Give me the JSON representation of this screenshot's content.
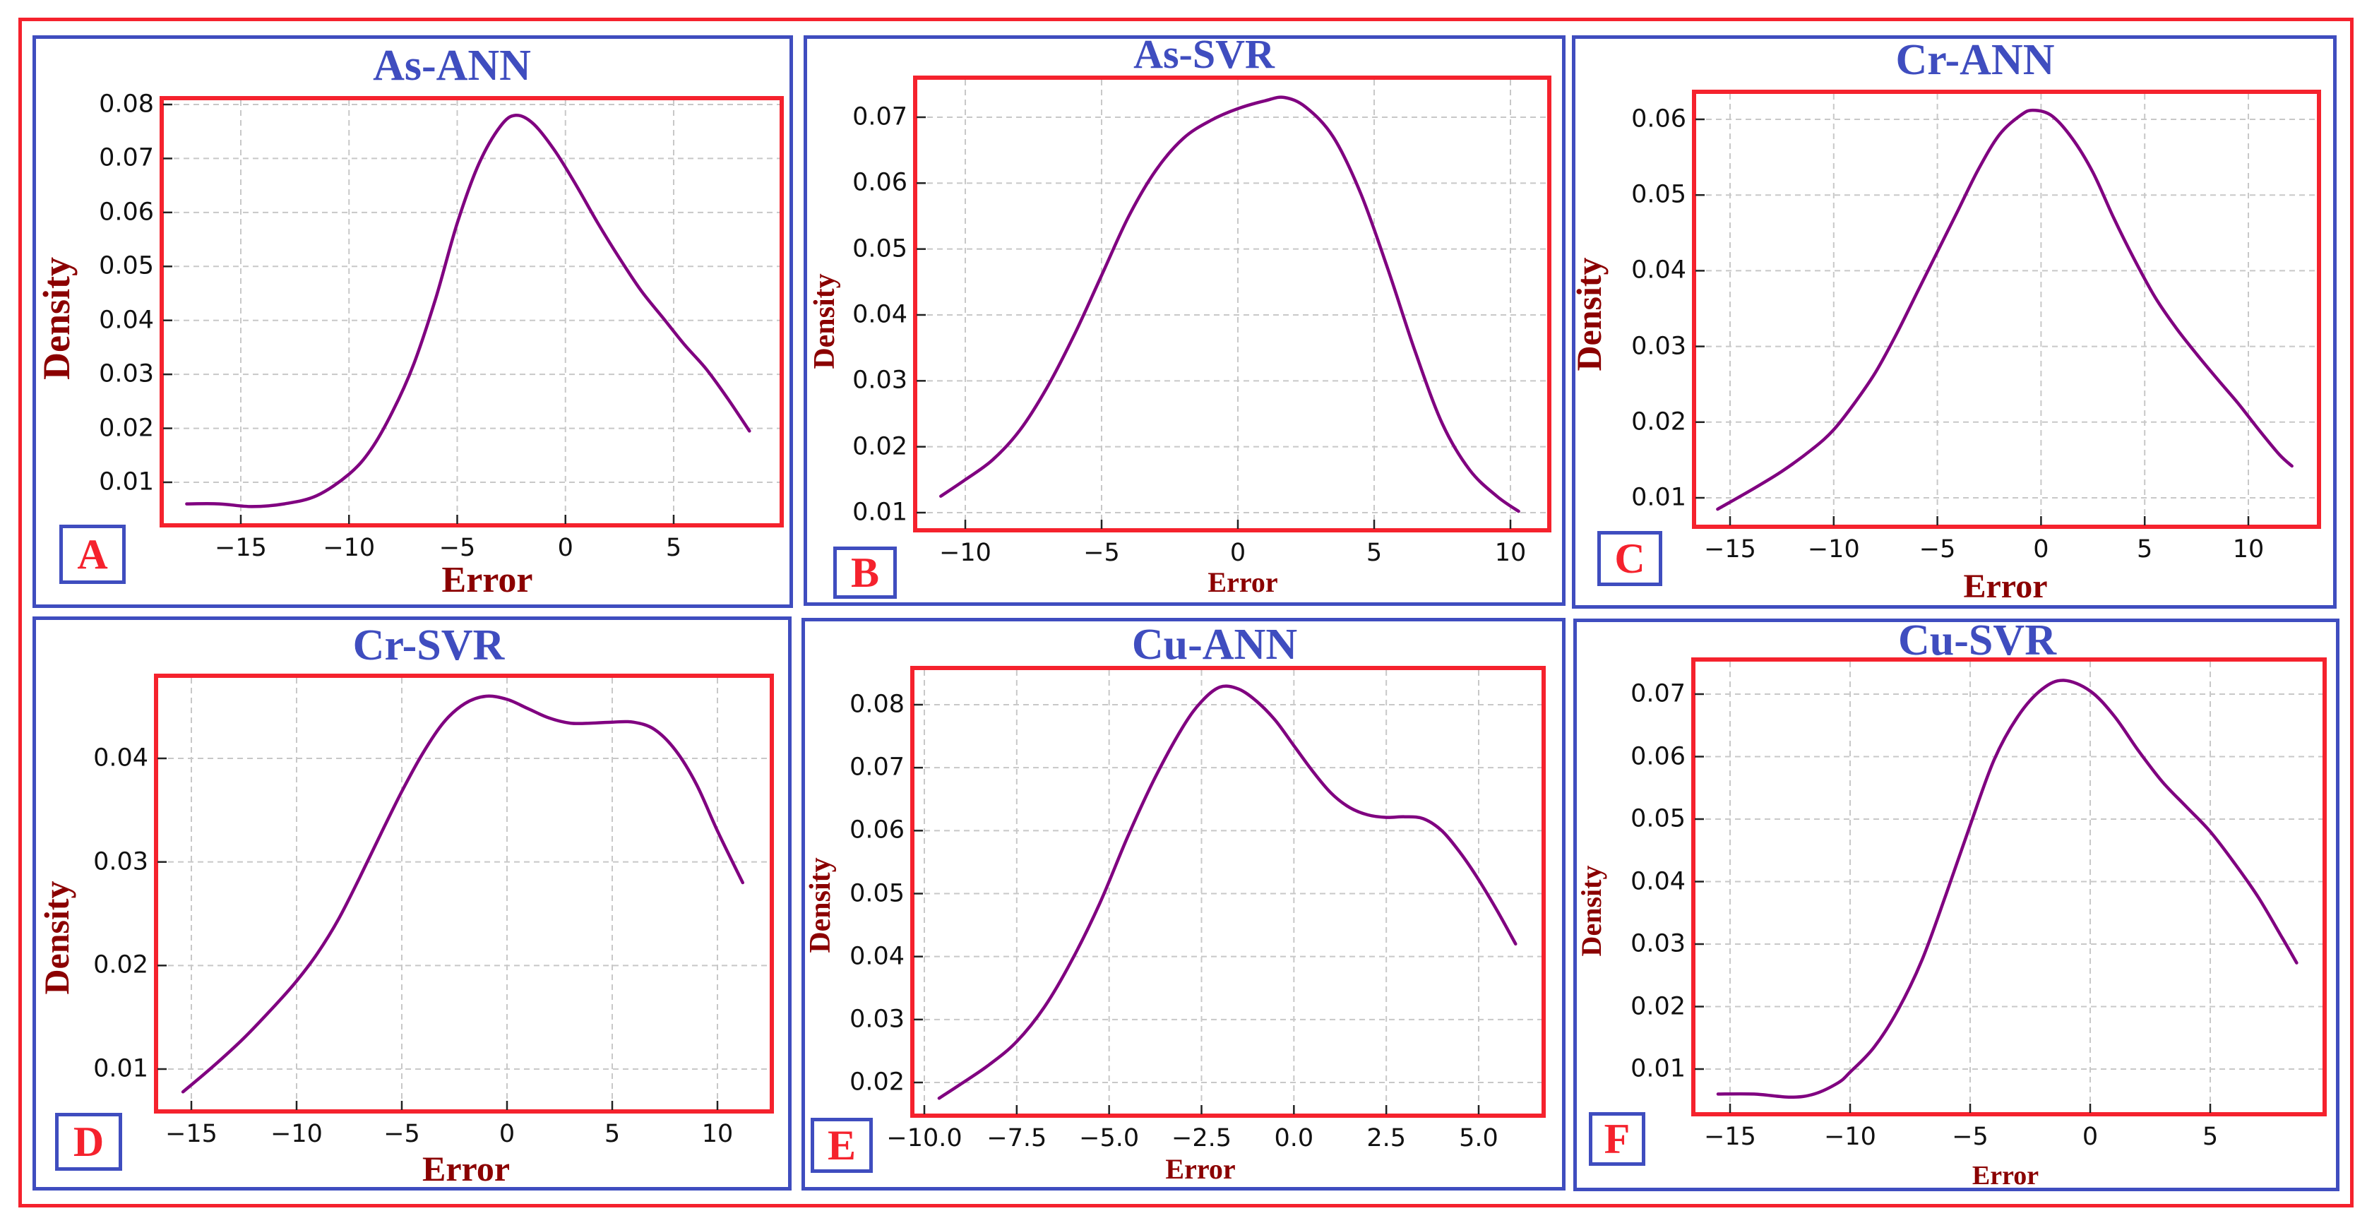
{
  "figure": {
    "panels": [
      {
        "id": "A",
        "title": "As-ANN",
        "letter": "A",
        "xlabel": "Error",
        "ylabel": "Density"
      },
      {
        "id": "B",
        "title": "As-SVR",
        "letter": "B",
        "xlabel": "Error",
        "ylabel": "Density"
      },
      {
        "id": "C",
        "title": "Cr-ANN",
        "letter": "C",
        "xlabel": "Error",
        "ylabel": "Density"
      },
      {
        "id": "D",
        "title": "Cr-SVR",
        "letter": "D",
        "xlabel": "Error",
        "ylabel": "Density"
      },
      {
        "id": "E",
        "title": "Cu-ANN",
        "letter": "E",
        "xlabel": "Error",
        "ylabel": "Density"
      },
      {
        "id": "F",
        "title": "Cu-SVR",
        "letter": "F",
        "xlabel": "Error",
        "ylabel": "Density"
      }
    ],
    "colors": {
      "outer_border": "#f5222d",
      "panel_border": "#3f4dbf",
      "plot_border": "#f5222d",
      "title": "#3f4dbf",
      "axis_label": "#8b0000",
      "curve": "#800080",
      "grid": "#c8c8c8",
      "letter": "#f5222d"
    }
  },
  "chart_data": [
    {
      "type": "line",
      "title": "As-ANN",
      "panel_label": "A",
      "xlabel": "Error",
      "ylabel": "Density",
      "xticks": [
        -15,
        -10,
        -5,
        0,
        5
      ],
      "xtick_labels": [
        "−15",
        "−10",
        "−5",
        "0",
        "5"
      ],
      "yticks": [
        0.01,
        0.02,
        0.03,
        0.04,
        0.05,
        0.06,
        0.07,
        0.08
      ],
      "ytick_labels": [
        "0.01",
        "0.02",
        "0.03",
        "0.04",
        "0.05",
        "0.06",
        "0.07",
        "0.08"
      ],
      "grid": true,
      "x": [
        -17.5,
        -16,
        -14.5,
        -13,
        -11.5,
        -10,
        -9,
        -8,
        -7,
        -6,
        -5,
        -4,
        -3,
        -2.3,
        -1.5,
        -0.5,
        0.5,
        1.5,
        2.5,
        3.5,
        4.5,
        5.5,
        6.5,
        7.5,
        8.5
      ],
      "y": [
        0.006,
        0.006,
        0.0055,
        0.006,
        0.0075,
        0.0115,
        0.016,
        0.023,
        0.032,
        0.044,
        0.058,
        0.069,
        0.076,
        0.078,
        0.0765,
        0.0715,
        0.065,
        0.058,
        0.0515,
        0.0455,
        0.0405,
        0.0355,
        0.031,
        0.0255,
        0.0195
      ]
    },
    {
      "type": "line",
      "title": "As-SVR",
      "panel_label": "B",
      "xlabel": "Error",
      "ylabel": "Density",
      "xticks": [
        -10,
        -5,
        0,
        5,
        10
      ],
      "xtick_labels": [
        "−10",
        "−5",
        "0",
        "5",
        "10"
      ],
      "yticks": [
        0.01,
        0.02,
        0.03,
        0.04,
        0.05,
        0.06,
        0.07
      ],
      "ytick_labels": [
        "0.01",
        "0.02",
        "0.03",
        "0.04",
        "0.05",
        "0.06",
        "0.07"
      ],
      "grid": true,
      "x": [
        -10.9,
        -10,
        -9,
        -8,
        -7,
        -6,
        -5,
        -4,
        -3,
        -2,
        -1,
        0,
        1,
        1.7,
        2.5,
        3.5,
        4.5,
        5.5,
        6.5,
        7.5,
        8.5,
        9.5,
        10.3
      ],
      "y": [
        0.0125,
        0.015,
        0.018,
        0.0225,
        0.029,
        0.037,
        0.046,
        0.055,
        0.062,
        0.0668,
        0.0695,
        0.0713,
        0.0725,
        0.073,
        0.0715,
        0.067,
        0.0585,
        0.047,
        0.0345,
        0.0235,
        0.0165,
        0.0125,
        0.0102
      ]
    },
    {
      "type": "line",
      "title": "Cr-ANN",
      "panel_label": "C",
      "xlabel": "Error",
      "ylabel": "Density",
      "xticks": [
        -15,
        -10,
        -5,
        0,
        5,
        10
      ],
      "xtick_labels": [
        "−15",
        "−10",
        "−5",
        "0",
        "5",
        "10"
      ],
      "yticks": [
        0.01,
        0.02,
        0.03,
        0.04,
        0.05,
        0.06
      ],
      "ytick_labels": [
        "0.01",
        "0.02",
        "0.03",
        "0.04",
        "0.05",
        "0.06"
      ],
      "grid": true,
      "x": [
        -15.6,
        -14,
        -12.5,
        -11,
        -10,
        -9,
        -8,
        -7,
        -6,
        -5,
        -4,
        -3,
        -2,
        -1,
        -0.4,
        0.5,
        1.5,
        2.5,
        3.5,
        4.5,
        5.5,
        6.5,
        7.5,
        8.5,
        9.5,
        10.5,
        11.5,
        12.1
      ],
      "y": [
        0.0085,
        0.011,
        0.0135,
        0.0165,
        0.019,
        0.0225,
        0.0265,
        0.0315,
        0.037,
        0.0425,
        0.048,
        0.0535,
        0.058,
        0.0605,
        0.0612,
        0.0605,
        0.0575,
        0.053,
        0.047,
        0.0415,
        0.0365,
        0.0325,
        0.029,
        0.0257,
        0.0225,
        0.019,
        0.0157,
        0.0142
      ]
    },
    {
      "type": "line",
      "title": "Cr-SVR",
      "panel_label": "D",
      "xlabel": "Error",
      "ylabel": "Density",
      "xticks": [
        -15,
        -10,
        -5,
        0,
        5,
        10
      ],
      "xtick_labels": [
        "−15",
        "−10",
        "−5",
        "0",
        "5",
        "10"
      ],
      "yticks": [
        0.01,
        0.02,
        0.03,
        0.04
      ],
      "ytick_labels": [
        "0.01",
        "0.02",
        "0.03",
        "0.04"
      ],
      "grid": true,
      "x": [
        -15.4,
        -14,
        -12.5,
        -11,
        -10,
        -9,
        -8,
        -7,
        -6,
        -5,
        -4,
        -3,
        -2,
        -1,
        0,
        1,
        2,
        3,
        4,
        5,
        6,
        7,
        8,
        9,
        10,
        11.2
      ],
      "y": [
        0.0078,
        0.0102,
        0.013,
        0.0162,
        0.0185,
        0.0212,
        0.0245,
        0.0285,
        0.0327,
        0.0368,
        0.0405,
        0.0435,
        0.0453,
        0.046,
        0.0457,
        0.0448,
        0.0439,
        0.0434,
        0.0434,
        0.0435,
        0.0435,
        0.0428,
        0.0408,
        0.0375,
        0.033,
        0.028
      ]
    },
    {
      "type": "line",
      "title": "Cu-ANN",
      "panel_label": "E",
      "xlabel": "Error",
      "ylabel": "Density",
      "xticks": [
        -10.0,
        -7.5,
        -5.0,
        -2.5,
        0.0,
        2.5,
        5.0
      ],
      "xtick_labels": [
        "−10.0",
        "−7.5",
        "−5.0",
        "−2.5",
        "0.0",
        "2.5",
        "5.0"
      ],
      "yticks": [
        0.02,
        0.03,
        0.04,
        0.05,
        0.06,
        0.07,
        0.08
      ],
      "ytick_labels": [
        "0.02",
        "0.03",
        "0.04",
        "0.05",
        "0.06",
        "0.07",
        "0.08"
      ],
      "grid": true,
      "x": [
        -9.6,
        -9,
        -8.25,
        -7.5,
        -6.75,
        -6,
        -5.25,
        -4.5,
        -3.75,
        -3,
        -2.5,
        -2,
        -1.5,
        -1,
        -0.5,
        0,
        0.5,
        1,
        1.5,
        2,
        2.5,
        3,
        3.5,
        4,
        4.5,
        5,
        5.5,
        6
      ],
      "y": [
        0.0175,
        0.0198,
        0.0228,
        0.0265,
        0.032,
        0.0395,
        0.0485,
        0.059,
        0.0685,
        0.0765,
        0.0805,
        0.0828,
        0.0825,
        0.0805,
        0.0775,
        0.0735,
        0.0695,
        0.066,
        0.0637,
        0.0625,
        0.0621,
        0.0622,
        0.0619,
        0.06,
        0.0565,
        0.0522,
        0.0473,
        0.042
      ]
    },
    {
      "type": "line",
      "title": "Cu-SVR",
      "panel_label": "F",
      "xlabel": "Error",
      "ylabel": "Density",
      "xticks": [
        -15,
        -10,
        -5,
        0,
        5
      ],
      "xtick_labels": [
        "−15",
        "−10",
        "−5",
        "0",
        "5"
      ],
      "yticks": [
        0.01,
        0.02,
        0.03,
        0.04,
        0.05,
        0.06,
        0.07
      ],
      "ytick_labels": [
        "0.01",
        "0.02",
        "0.03",
        "0.04",
        "0.05",
        "0.06",
        "0.07"
      ],
      "grid": true,
      "x": [
        -15.5,
        -14,
        -12.5,
        -11.5,
        -10.5,
        -10,
        -9,
        -8,
        -7,
        -6,
        -5,
        -4,
        -3,
        -2,
        -1.1,
        0,
        1,
        2,
        3,
        4,
        5,
        6,
        7,
        8,
        8.6
      ],
      "y": [
        0.006,
        0.006,
        0.0055,
        0.006,
        0.0078,
        0.0095,
        0.0135,
        0.0195,
        0.0275,
        0.038,
        0.049,
        0.0595,
        0.0665,
        0.0708,
        0.0722,
        0.0705,
        0.0665,
        0.061,
        0.056,
        0.052,
        0.048,
        0.043,
        0.0375,
        0.031,
        0.027
      ]
    }
  ]
}
